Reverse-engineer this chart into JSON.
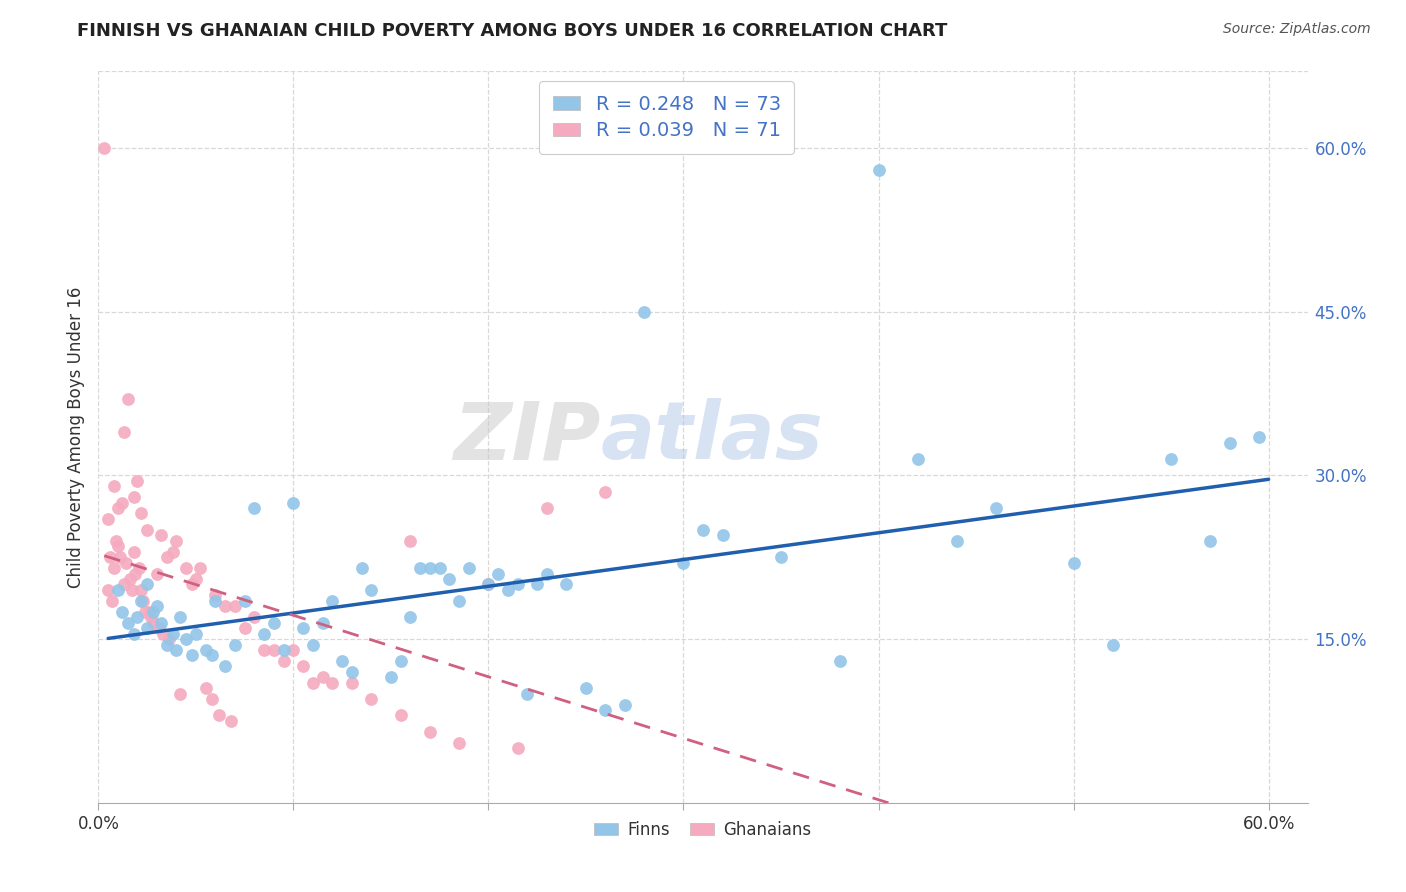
{
  "title": "FINNISH VS GHANAIAN CHILD POVERTY AMONG BOYS UNDER 16 CORRELATION CHART",
  "source": "Source: ZipAtlas.com",
  "ylabel": "Child Poverty Among Boys Under 16",
  "xlim": [
    0.0,
    0.62
  ],
  "ylim": [
    0.0,
    0.67
  ],
  "xtick_positions": [
    0.0,
    0.1,
    0.2,
    0.3,
    0.4,
    0.5,
    0.6
  ],
  "xticklabels": [
    "0.0%",
    "",
    "",
    "",
    "",
    "",
    "60.0%"
  ],
  "yticks_right": [
    0.15,
    0.3,
    0.45,
    0.6
  ],
  "ytick_right_labels": [
    "15.0%",
    "30.0%",
    "45.0%",
    "60.0%"
  ],
  "watermark_zip": "ZIP",
  "watermark_atlas": "atlas",
  "finn_R": "0.248",
  "finn_N": "73",
  "ghana_R": "0.039",
  "ghana_N": "71",
  "finn_color": "#92C5E8",
  "ghana_color": "#F5AABF",
  "finn_line_color": "#1F5FAD",
  "ghana_line_color": "#D06080",
  "background_color": "#ffffff",
  "grid_color": "#d8d8d8",
  "finns_x": [
    0.01,
    0.012,
    0.015,
    0.018,
    0.02,
    0.022,
    0.025,
    0.025,
    0.028,
    0.03,
    0.032,
    0.035,
    0.038,
    0.04,
    0.042,
    0.045,
    0.048,
    0.05,
    0.055,
    0.058,
    0.06,
    0.065,
    0.07,
    0.075,
    0.08,
    0.085,
    0.09,
    0.095,
    0.1,
    0.105,
    0.11,
    0.115,
    0.12,
    0.125,
    0.13,
    0.135,
    0.14,
    0.15,
    0.155,
    0.16,
    0.165,
    0.17,
    0.175,
    0.18,
    0.185,
    0.19,
    0.2,
    0.205,
    0.21,
    0.215,
    0.22,
    0.225,
    0.23,
    0.24,
    0.25,
    0.26,
    0.27,
    0.28,
    0.3,
    0.31,
    0.32,
    0.35,
    0.38,
    0.4,
    0.42,
    0.44,
    0.46,
    0.5,
    0.52,
    0.55,
    0.57,
    0.58,
    0.595
  ],
  "finns_y": [
    0.195,
    0.175,
    0.165,
    0.155,
    0.17,
    0.185,
    0.16,
    0.2,
    0.175,
    0.18,
    0.165,
    0.145,
    0.155,
    0.14,
    0.17,
    0.15,
    0.135,
    0.155,
    0.14,
    0.135,
    0.185,
    0.125,
    0.145,
    0.185,
    0.27,
    0.155,
    0.165,
    0.14,
    0.275,
    0.16,
    0.145,
    0.165,
    0.185,
    0.13,
    0.12,
    0.215,
    0.195,
    0.115,
    0.13,
    0.17,
    0.215,
    0.215,
    0.215,
    0.205,
    0.185,
    0.215,
    0.2,
    0.21,
    0.195,
    0.2,
    0.1,
    0.2,
    0.21,
    0.2,
    0.105,
    0.085,
    0.09,
    0.45,
    0.22,
    0.25,
    0.245,
    0.225,
    0.13,
    0.58,
    0.315,
    0.24,
    0.27,
    0.22,
    0.145,
    0.315,
    0.24,
    0.33,
    0.335
  ],
  "ghanaians_x": [
    0.003,
    0.005,
    0.005,
    0.006,
    0.007,
    0.008,
    0.008,
    0.009,
    0.01,
    0.01,
    0.011,
    0.012,
    0.013,
    0.013,
    0.014,
    0.015,
    0.016,
    0.017,
    0.018,
    0.018,
    0.019,
    0.02,
    0.021,
    0.022,
    0.022,
    0.023,
    0.024,
    0.025,
    0.026,
    0.027,
    0.028,
    0.03,
    0.031,
    0.032,
    0.033,
    0.035,
    0.036,
    0.038,
    0.04,
    0.042,
    0.045,
    0.048,
    0.05,
    0.052,
    0.055,
    0.058,
    0.06,
    0.062,
    0.065,
    0.068,
    0.07,
    0.075,
    0.08,
    0.085,
    0.09,
    0.095,
    0.1,
    0.105,
    0.11,
    0.115,
    0.12,
    0.13,
    0.14,
    0.155,
    0.16,
    0.17,
    0.185,
    0.2,
    0.215,
    0.23,
    0.26
  ],
  "ghanaians_y": [
    0.6,
    0.195,
    0.26,
    0.225,
    0.185,
    0.215,
    0.29,
    0.24,
    0.235,
    0.27,
    0.225,
    0.275,
    0.2,
    0.34,
    0.22,
    0.37,
    0.205,
    0.195,
    0.28,
    0.23,
    0.21,
    0.295,
    0.215,
    0.195,
    0.265,
    0.185,
    0.175,
    0.25,
    0.175,
    0.17,
    0.165,
    0.21,
    0.16,
    0.245,
    0.155,
    0.225,
    0.15,
    0.23,
    0.24,
    0.1,
    0.215,
    0.2,
    0.205,
    0.215,
    0.105,
    0.095,
    0.19,
    0.08,
    0.18,
    0.075,
    0.18,
    0.16,
    0.17,
    0.14,
    0.14,
    0.13,
    0.14,
    0.125,
    0.11,
    0.115,
    0.11,
    0.11,
    0.095,
    0.08,
    0.24,
    0.065,
    0.055,
    0.2,
    0.05,
    0.27,
    0.285
  ]
}
